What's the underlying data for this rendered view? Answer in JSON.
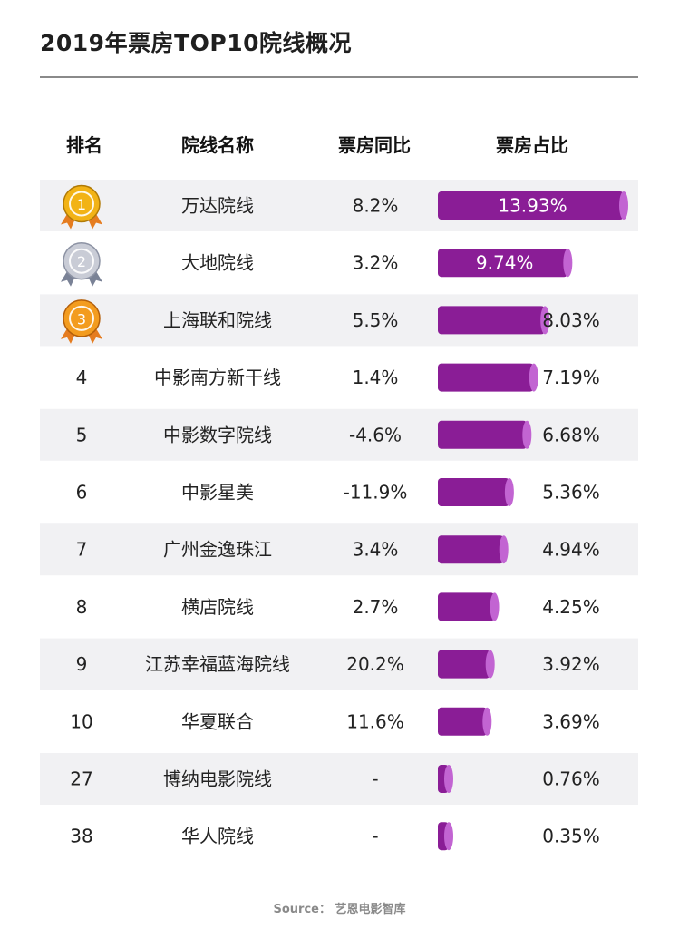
{
  "title": "2019年票房TOP10院线概况",
  "headers": {
    "rank": "排名",
    "name": "院线名称",
    "yoy": "票房同比",
    "share": "票房占比"
  },
  "source": "Source： 艺恩电影智库",
  "colors": {
    "bar_main": "#8a1d96",
    "bar_cap": "#c264d2",
    "row_stripe": "#f1f1f3",
    "gold": "#f2b316",
    "silver": "#c9ccd6",
    "bronze": "#f39c1f",
    "ribbon": "#e57c1f"
  },
  "chart_data": {
    "type": "table",
    "columns": [
      "排名",
      "院线名称",
      "票房同比",
      "票房占比"
    ],
    "rows": [
      {
        "rank": "1",
        "medal": "gold",
        "name": "万达院线",
        "yoy": "8.2%",
        "share": 13.93,
        "share_label": "13.93%"
      },
      {
        "rank": "2",
        "medal": "silver",
        "name": "大地院线",
        "yoy": "3.2%",
        "share": 9.74,
        "share_label": "9.74%"
      },
      {
        "rank": "3",
        "medal": "bronze",
        "name": "上海联和院线",
        "yoy": "5.5%",
        "share": 8.03,
        "share_label": "8.03%"
      },
      {
        "rank": "4",
        "medal": "",
        "name": "中影南方新干线",
        "yoy": "1.4%",
        "share": 7.19,
        "share_label": "7.19%"
      },
      {
        "rank": "5",
        "medal": "",
        "name": "中影数字院线",
        "yoy": "-4.6%",
        "share": 6.68,
        "share_label": "6.68%"
      },
      {
        "rank": "6",
        "medal": "",
        "name": "中影星美",
        "yoy": "-11.9%",
        "share": 5.36,
        "share_label": "5.36%"
      },
      {
        "rank": "7",
        "medal": "",
        "name": "广州金逸珠江",
        "yoy": "3.4%",
        "share": 4.94,
        "share_label": "4.94%"
      },
      {
        "rank": "8",
        "medal": "",
        "name": "横店院线",
        "yoy": "2.7%",
        "share": 4.25,
        "share_label": "4.25%"
      },
      {
        "rank": "9",
        "medal": "",
        "name": "江苏幸福蓝海院线",
        "yoy": "20.2%",
        "share": 3.92,
        "share_label": "3.92%"
      },
      {
        "rank": "10",
        "medal": "",
        "name": "华夏联合",
        "yoy": "11.6%",
        "share": 3.69,
        "share_label": "3.69%"
      },
      {
        "rank": "27",
        "medal": "",
        "name": "博纳电影院线",
        "yoy": "-",
        "share": 0.76,
        "share_label": "0.76%"
      },
      {
        "rank": "38",
        "medal": "",
        "name": "华人院线",
        "yoy": "-",
        "share": 0.35,
        "share_label": "0.35%"
      }
    ]
  }
}
